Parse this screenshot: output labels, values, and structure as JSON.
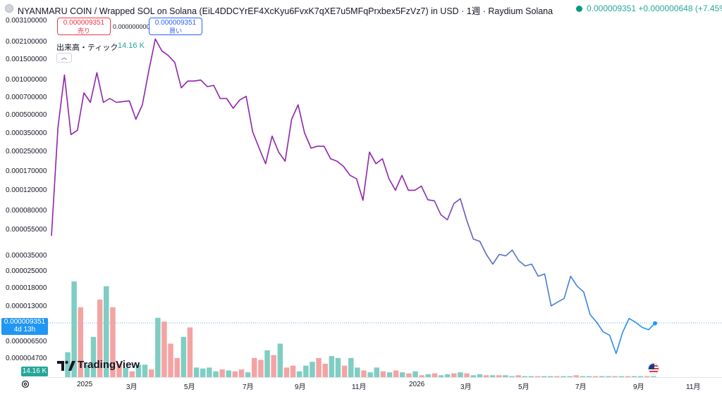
{
  "header": {
    "title": "NYANMARU COIN / Wrapped SOL on Solana (EiL4DDCYrEF4XcKyu6FvxK7qXE7u5MFqPrxbex5FzVz7) in USD · 1週 · Raydium Solana",
    "last_price": "0.000009351 +0.000000648 (+7.45%)"
  },
  "trade": {
    "sell_price": "0.000009351",
    "sell_label": "売り",
    "spread": "0.000000000",
    "buy_price": "0.000009351",
    "buy_label": "買い"
  },
  "volume_legend": {
    "label": "出来高・ティック",
    "value": "14.16 K"
  },
  "price_tag": {
    "price": "0.000009351",
    "countdown": "4d 13h"
  },
  "volume_tag": "14.16 K",
  "brand": "TradingView",
  "colors": {
    "line_top": "#8e24aa",
    "line_bottom": "#2196f3",
    "vol_up": "#7fcdc3",
    "vol_down": "#f4a3a3"
  },
  "chart_data": {
    "type": "line",
    "scale": "log",
    "x_ticks": [
      "2025",
      "3月",
      "5月",
      "7月",
      "9月",
      "11月",
      "2026",
      "3月",
      "5月",
      "7月",
      "9月",
      "11月"
    ],
    "y_ticks": [
      "0.003100000",
      "0.002100000",
      "0.001500000",
      "0.001000000",
      "0.000700000",
      "0.000500000",
      "0.000350000",
      "0.000250000",
      "0.000170000",
      "0.000120000",
      "0.000080000",
      "0.000055000",
      "0.000035000",
      "0.000025000",
      "0.000018000",
      "0.000013000",
      "0.000006500",
      "0.000004700"
    ],
    "series": [
      {
        "values": [
          5e-05,
          0.0004,
          0.0011,
          0.00035,
          0.00038,
          0.00078,
          0.00065,
          0.00115,
          0.00065,
          0.0007,
          0.00065,
          0.00066,
          0.00067,
          0.00047,
          0.00062,
          0.0012,
          0.0022,
          0.00175,
          0.0016,
          0.0014,
          0.00086,
          0.00098,
          0.00098,
          0.001,
          0.00088,
          0.0009,
          0.0007,
          0.0007,
          0.00058,
          0.00068,
          0.00073,
          0.00037,
          0.00027,
          0.0002,
          0.00034,
          0.00025,
          0.00021,
          0.00047,
          0.00062,
          0.00036,
          0.00027,
          0.00028,
          0.00028,
          0.00022,
          0.00021,
          0.00019,
          0.00016,
          0.00015,
          9.9e-05,
          0.00025,
          0.0002,
          0.00022,
          0.00015,
          0.00012,
          0.00016,
          0.00012,
          0.00012,
          0.00013,
          0.0001,
          9.8e-05,
          7.5e-05,
          6.8e-05,
          9.3e-05,
          0.000102,
          6.7e-05,
          4.7e-05,
          4.5e-05,
          3.5e-05,
          2.9e-05,
          3.5e-05,
          3.4e-05,
          3.8e-05,
          3.1e-05,
          2.8e-05,
          2.9e-05,
          2.3e-05,
          2.4e-05,
          1.3e-05,
          1.4e-05,
          1.5e-05,
          2.3e-05,
          1.9e-05,
          1.7e-05,
          1.1e-05,
          9.5e-06,
          7.9e-06,
          7.4e-06,
          5.2e-06,
          7.8e-06,
          1.02e-05,
          9.5e-06,
          8.6e-06,
          8.2e-06,
          9.3e-06
        ]
      }
    ],
    "volume": [
      {
        "v": 0,
        "up": true
      },
      {
        "v": 0,
        "up": true
      },
      {
        "v": 0.26,
        "up": true
      },
      {
        "v": 1.0,
        "up": true
      },
      {
        "v": 0.73,
        "up": false
      },
      {
        "v": 0.13,
        "up": true
      },
      {
        "v": 0.42,
        "up": true
      },
      {
        "v": 0.81,
        "up": false
      },
      {
        "v": 0.95,
        "up": true
      },
      {
        "v": 0.73,
        "up": false
      },
      {
        "v": 0.14,
        "up": false
      },
      {
        "v": 0.1,
        "up": true
      },
      {
        "v": 0.06,
        "up": false
      },
      {
        "v": 0.13,
        "up": true
      },
      {
        "v": 0.13,
        "up": true
      },
      {
        "v": 0.08,
        "up": false
      },
      {
        "v": 0.62,
        "up": true
      },
      {
        "v": 0.58,
        "up": false
      },
      {
        "v": 0.35,
        "up": false
      },
      {
        "v": 0.2,
        "up": false
      },
      {
        "v": 0.42,
        "up": true
      },
      {
        "v": 0.52,
        "up": false
      },
      {
        "v": 0.1,
        "up": true
      },
      {
        "v": 0.09,
        "up": true
      },
      {
        "v": 0.1,
        "up": true
      },
      {
        "v": 0.06,
        "up": true
      },
      {
        "v": 0.08,
        "up": false
      },
      {
        "v": 0.07,
        "up": true
      },
      {
        "v": 0.06,
        "up": false
      },
      {
        "v": 0.08,
        "up": false
      },
      {
        "v": 0.05,
        "up": true
      },
      {
        "v": 0.2,
        "up": false
      },
      {
        "v": 0.18,
        "up": false
      },
      {
        "v": 0.28,
        "up": true
      },
      {
        "v": 0.23,
        "up": false
      },
      {
        "v": 0.35,
        "up": true
      },
      {
        "v": 0.1,
        "up": false
      },
      {
        "v": 0.12,
        "up": false
      },
      {
        "v": 0.06,
        "up": true
      },
      {
        "v": 0.12,
        "up": true
      },
      {
        "v": 0.16,
        "up": true
      },
      {
        "v": 0.2,
        "up": false
      },
      {
        "v": 0.14,
        "up": false
      },
      {
        "v": 0.22,
        "up": true
      },
      {
        "v": 0.2,
        "up": true
      },
      {
        "v": 0.12,
        "up": false
      },
      {
        "v": 0.2,
        "up": true
      },
      {
        "v": 0.1,
        "up": true
      },
      {
        "v": 0.07,
        "up": false
      },
      {
        "v": 0.05,
        "up": true
      },
      {
        "v": 0.1,
        "up": true
      },
      {
        "v": 0.06,
        "up": false
      },
      {
        "v": 0.05,
        "up": true
      },
      {
        "v": 0.07,
        "up": false
      },
      {
        "v": 0.05,
        "up": true
      },
      {
        "v": 0.04,
        "up": false
      },
      {
        "v": 0.06,
        "up": true
      },
      {
        "v": 0.02,
        "up": false
      },
      {
        "v": 0.03,
        "up": true
      },
      {
        "v": 0.04,
        "up": false
      },
      {
        "v": 0.02,
        "up": true
      },
      {
        "v": 0.03,
        "up": true
      },
      {
        "v": 0.04,
        "up": false
      },
      {
        "v": 0.05,
        "up": true
      },
      {
        "v": 0.04,
        "up": false
      },
      {
        "v": 0.02,
        "up": true
      },
      {
        "v": 0.03,
        "up": true
      },
      {
        "v": 0.02,
        "up": false
      },
      {
        "v": 0.02,
        "up": true
      },
      {
        "v": 0.02,
        "up": false
      },
      {
        "v": 0.02,
        "up": true
      },
      {
        "v": 0.01,
        "up": true
      },
      {
        "v": 0.02,
        "up": false
      },
      {
        "v": 0.01,
        "up": true
      },
      {
        "v": 0.01,
        "up": true
      },
      {
        "v": 0.01,
        "up": false
      },
      {
        "v": 0.01,
        "up": true
      },
      {
        "v": 0.01,
        "up": true
      },
      {
        "v": 0.01,
        "up": false
      },
      {
        "v": 0.01,
        "up": true
      },
      {
        "v": 0.01,
        "up": true
      },
      {
        "v": 0.02,
        "up": false
      },
      {
        "v": 0.01,
        "up": true
      },
      {
        "v": 0.01,
        "up": true
      },
      {
        "v": 0.01,
        "up": false
      },
      {
        "v": 0.01,
        "up": true
      },
      {
        "v": 0.01,
        "up": true
      },
      {
        "v": 0.01,
        "up": false
      },
      {
        "v": 0.01,
        "up": true
      },
      {
        "v": 0.01,
        "up": false
      },
      {
        "v": 0.01,
        "up": true
      },
      {
        "v": 0.01,
        "up": true
      },
      {
        "v": 0.01,
        "up": false
      },
      {
        "v": 0.01,
        "up": true
      }
    ]
  }
}
